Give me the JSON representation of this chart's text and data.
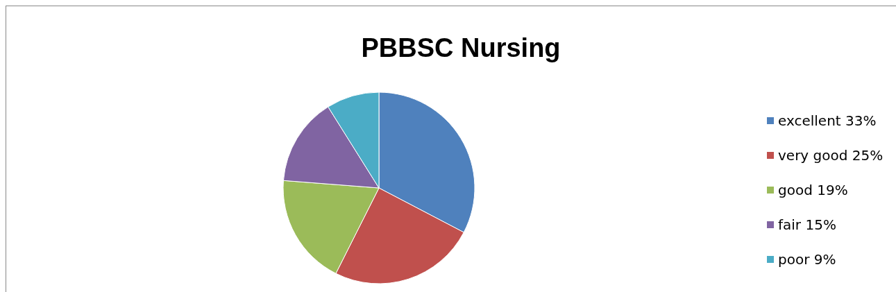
{
  "chart_data": {
    "type": "pie",
    "title": "PBBSC Nursing",
    "categories": [
      "excellent 33%",
      "very good 25%",
      "good 19%",
      "fair 15%",
      "poor 9%"
    ],
    "values": [
      33,
      25,
      19,
      15,
      9
    ],
    "colors": [
      "#4f81bd",
      "#c0504d",
      "#9bbb59",
      "#8064a2",
      "#4bacc6"
    ],
    "legend": "right"
  }
}
